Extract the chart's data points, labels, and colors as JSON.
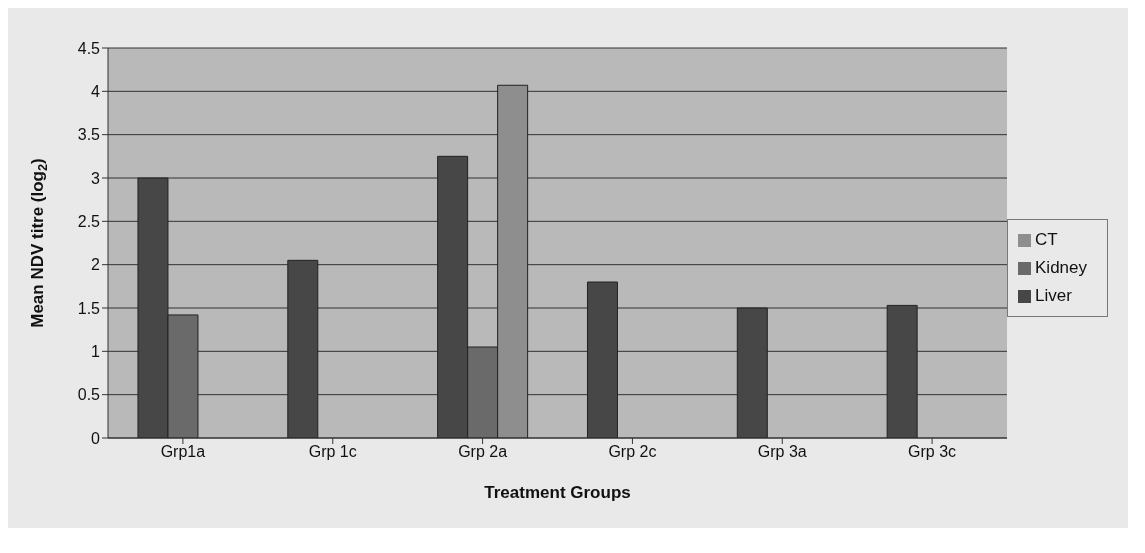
{
  "chart_data": {
    "type": "bar",
    "xlabel": "Treatment Groups",
    "ylabel": "Mean NDV titre (log$_{2}$)",
    "categories": [
      "Grp1a",
      "Grp 1c",
      "Grp 2a",
      "Grp 2c",
      "Grp 3a",
      "Grp 3c"
    ],
    "series": [
      {
        "name": "Liver",
        "color": "#474747",
        "values": [
          3,
          2.05,
          3.25,
          1.8,
          1.5,
          1.53
        ]
      },
      {
        "name": "Kidney",
        "color": "#6a6a6a",
        "values": [
          1.42,
          null,
          1.05,
          null,
          null,
          null
        ]
      },
      {
        "name": "CT",
        "color": "#8e8e8e",
        "values": [
          null,
          null,
          4.07,
          null,
          null,
          null
        ]
      }
    ],
    "ylim": [
      0,
      4.5
    ],
    "yticks": [
      0,
      0.5,
      1,
      1.5,
      2,
      2.5,
      3,
      3.5,
      4,
      4.5
    ],
    "grid": "y",
    "legend": "right"
  }
}
